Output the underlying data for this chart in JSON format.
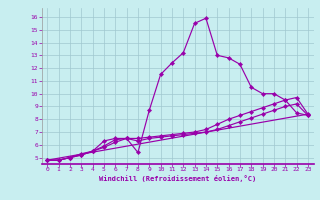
{
  "xlabel": "Windchill (Refroidissement éolien,°C)",
  "bg_color": "#c8eef0",
  "line_color": "#9900aa",
  "grid_color": "#a0c8d0",
  "xlim": [
    -0.5,
    23.5
  ],
  "ylim": [
    4.5,
    16.7
  ],
  "xticks": [
    0,
    1,
    2,
    3,
    4,
    5,
    6,
    7,
    8,
    9,
    10,
    11,
    12,
    13,
    14,
    15,
    16,
    17,
    18,
    19,
    20,
    21,
    22,
    23
  ],
  "yticks": [
    5,
    6,
    7,
    8,
    9,
    10,
    11,
    12,
    13,
    14,
    15,
    16
  ],
  "series1": {
    "x": [
      0,
      1,
      2,
      3,
      4,
      5,
      6,
      7,
      8,
      9,
      10,
      11,
      12,
      13,
      14,
      15,
      16,
      17,
      18,
      19,
      20,
      21,
      22,
      23
    ],
    "y": [
      4.8,
      4.8,
      5.0,
      5.2,
      5.5,
      6.3,
      6.5,
      6.5,
      5.4,
      8.7,
      11.5,
      12.4,
      13.2,
      15.5,
      15.9,
      13.0,
      12.8,
      12.3,
      10.5,
      10.0,
      10.0,
      9.5,
      8.5,
      8.3
    ]
  },
  "series2": {
    "x": [
      0,
      1,
      2,
      3,
      4,
      5,
      6,
      7,
      8,
      9,
      10,
      11,
      12,
      13,
      14,
      15,
      16,
      17,
      18,
      19,
      20,
      21,
      22,
      23
    ],
    "y": [
      4.8,
      4.8,
      5.0,
      5.2,
      5.5,
      5.8,
      6.2,
      6.5,
      6.5,
      6.6,
      6.7,
      6.8,
      6.9,
      7.0,
      7.2,
      7.6,
      8.0,
      8.3,
      8.6,
      8.9,
      9.2,
      9.5,
      9.7,
      8.4
    ]
  },
  "series3": {
    "x": [
      0,
      1,
      2,
      3,
      4,
      5,
      6,
      7,
      8,
      9,
      10,
      11,
      12,
      13,
      14,
      15,
      16,
      17,
      18,
      19,
      20,
      21,
      22,
      23
    ],
    "y": [
      4.8,
      4.8,
      5.0,
      5.3,
      5.5,
      5.9,
      6.4,
      6.5,
      6.3,
      6.5,
      6.6,
      6.7,
      6.8,
      6.9,
      7.0,
      7.2,
      7.5,
      7.8,
      8.1,
      8.4,
      8.7,
      9.0,
      9.2,
      8.3
    ]
  },
  "series4": {
    "x": [
      0,
      23
    ],
    "y": [
      4.8,
      8.4
    ]
  }
}
